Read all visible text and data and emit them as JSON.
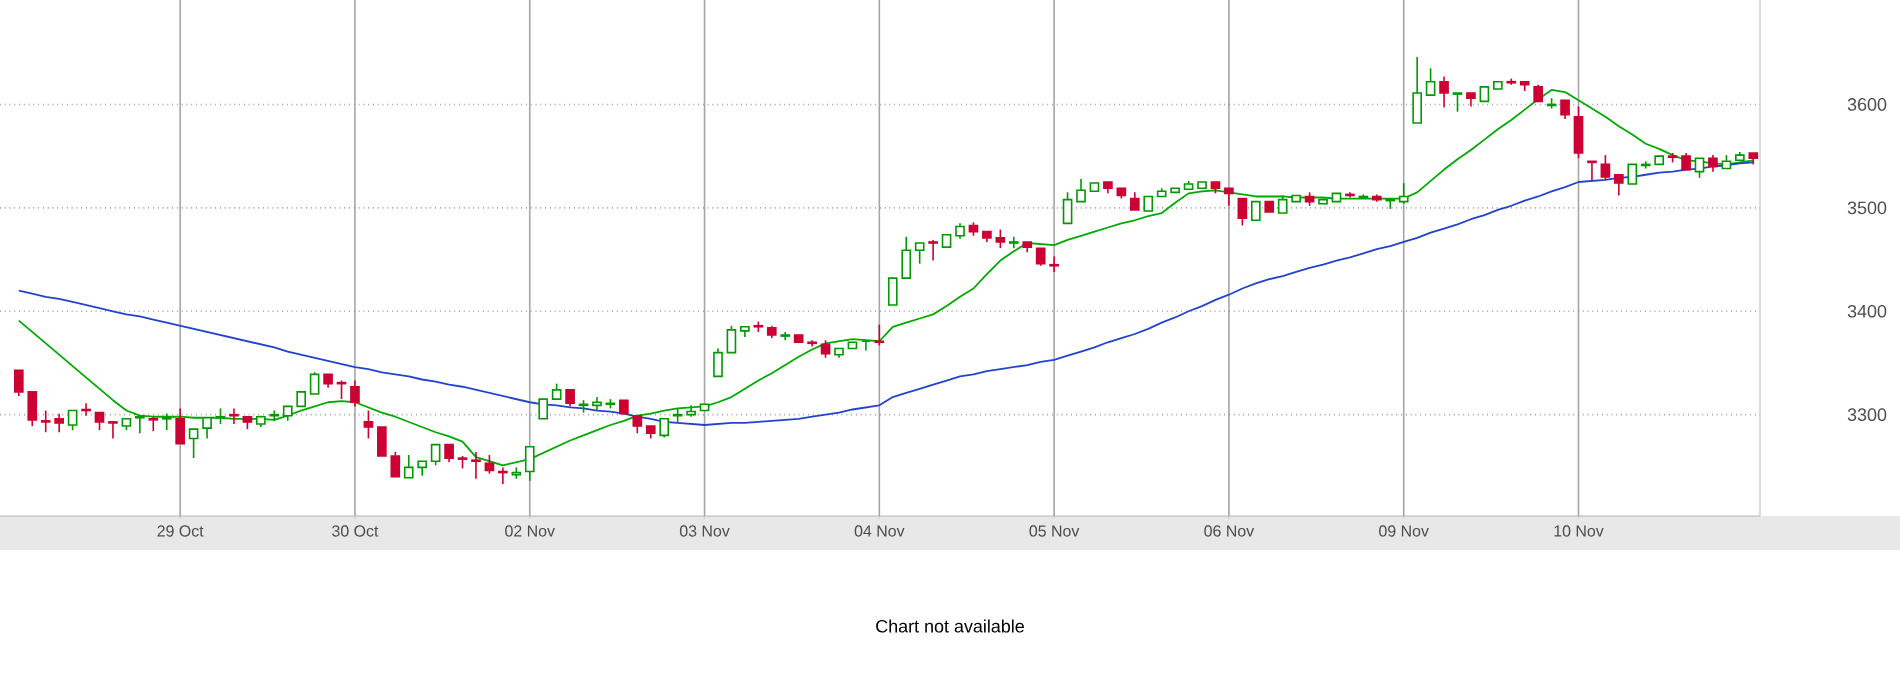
{
  "chart_data": {
    "type": "candlestick",
    "categories": [
      null,
      null,
      null,
      null,
      null,
      null,
      null,
      null,
      null,
      null,
      null,
      null,
      "29 Oct",
      null,
      null,
      null,
      null,
      null,
      null,
      null,
      null,
      null,
      null,
      null,
      null,
      "30 Oct",
      null,
      null,
      null,
      null,
      null,
      null,
      null,
      null,
      null,
      null,
      null,
      null,
      "02 Nov",
      null,
      null,
      null,
      null,
      null,
      null,
      null,
      null,
      null,
      null,
      null,
      null,
      "03 Nov",
      null,
      null,
      null,
      null,
      null,
      null,
      null,
      null,
      null,
      null,
      null,
      null,
      "04 Nov",
      null,
      null,
      null,
      null,
      null,
      null,
      null,
      null,
      null,
      null,
      null,
      null,
      "05 Nov",
      null,
      null,
      null,
      null,
      null,
      null,
      null,
      null,
      null,
      null,
      null,
      null,
      "06 Nov",
      null,
      null,
      null,
      null,
      null,
      null,
      null,
      null,
      null,
      null,
      null,
      null,
      "09 Nov",
      null,
      null,
      null,
      null,
      null,
      null,
      null,
      null,
      null,
      null,
      null,
      null,
      "10 Nov",
      null,
      null,
      null,
      null,
      null,
      null,
      null,
      null,
      null,
      null,
      null,
      null,
      null
    ],
    "ohlc": [
      [
        3343,
        3343,
        3318,
        3322
      ],
      [
        3322,
        3322,
        3289,
        3295
      ],
      [
        3294,
        3304,
        3283,
        3293
      ],
      [
        3296,
        3301,
        3283,
        3292
      ],
      [
        3290,
        3304,
        3285,
        3304
      ],
      [
        3305,
        3311,
        3299,
        3304
      ],
      [
        3302,
        3302,
        3285,
        3293
      ],
      [
        3293,
        3293,
        3277,
        3292
      ],
      [
        3289,
        3296,
        3285,
        3296
      ],
      [
        3297,
        3299,
        3282,
        3298
      ],
      [
        3296,
        3298,
        3284,
        3295
      ],
      [
        3296,
        3301,
        3285,
        3297
      ],
      [
        3296,
        3306,
        3272,
        3272
      ],
      [
        3277,
        3286,
        3258,
        3286
      ],
      [
        3287,
        3297,
        3277,
        3297
      ],
      [
        3297,
        3306,
        3291,
        3298
      ],
      [
        3300,
        3306,
        3291,
        3299
      ],
      [
        3298,
        3298,
        3286,
        3293
      ],
      [
        3291,
        3299,
        3288,
        3298
      ],
      [
        3299,
        3304,
        3294,
        3300
      ],
      [
        3299,
        3308,
        3294,
        3308
      ],
      [
        3308,
        3322,
        3308,
        3322
      ],
      [
        3320,
        3341,
        3320,
        3339
      ],
      [
        3339,
        3339,
        3326,
        3330
      ],
      [
        3331,
        3333,
        3315,
        3330
      ],
      [
        3327,
        3333,
        3308,
        3312
      ],
      [
        3293,
        3304,
        3277,
        3288
      ],
      [
        3288,
        3288,
        3260,
        3260
      ],
      [
        3260,
        3264,
        3240,
        3240
      ],
      [
        3239,
        3261,
        3239,
        3249
      ],
      [
        3249,
        3255,
        3241,
        3255
      ],
      [
        3255,
        3271,
        3251,
        3271
      ],
      [
        3271,
        3271,
        3254,
        3258
      ],
      [
        3258,
        3260,
        3248,
        3257
      ],
      [
        3256,
        3264,
        3238,
        3255
      ],
      [
        3253,
        3261,
        3243,
        3246
      ],
      [
        3245,
        3249,
        3233,
        3244
      ],
      [
        3242,
        3249,
        3238,
        3244
      ],
      [
        3245,
        3269,
        3236,
        3269
      ],
      [
        3296,
        3315,
        3296,
        3315
      ],
      [
        3315,
        3330,
        3315,
        3324
      ],
      [
        3324,
        3324,
        3308,
        3311
      ],
      [
        3309,
        3314,
        3302,
        3310
      ],
      [
        3309,
        3317,
        3304,
        3312
      ],
      [
        3310,
        3315,
        3306,
        3311
      ],
      [
        3314,
        3314,
        3301,
        3301
      ],
      [
        3299,
        3299,
        3282,
        3289
      ],
      [
        3289,
        3289,
        3277,
        3282
      ],
      [
        3280,
        3296,
        3278,
        3296
      ],
      [
        3299,
        3306,
        3293,
        3300
      ],
      [
        3300,
        3309,
        3298,
        3303
      ],
      [
        3304,
        3310,
        3304,
        3310
      ],
      [
        3337,
        3364,
        3337,
        3360
      ],
      [
        3360,
        3386,
        3360,
        3382
      ],
      [
        3381,
        3385,
        3375,
        3385
      ],
      [
        3386,
        3390,
        3380,
        3385
      ],
      [
        3384,
        3386,
        3374,
        3377
      ],
      [
        3376,
        3380,
        3372,
        3377
      ],
      [
        3377,
        3377,
        3370,
        3370
      ],
      [
        3370,
        3372,
        3366,
        3369
      ],
      [
        3368,
        3372,
        3355,
        3359
      ],
      [
        3358,
        3364,
        3355,
        3364
      ],
      [
        3364,
        3370,
        3364,
        3370
      ],
      [
        3371,
        3371,
        3362,
        3371
      ],
      [
        3371,
        3387,
        3367,
        3370
      ],
      [
        3406,
        3432,
        3406,
        3432
      ],
      [
        3432,
        3472,
        3432,
        3459
      ],
      [
        3459,
        3466,
        3446,
        3466
      ],
      [
        3467,
        3469,
        3449,
        3466
      ],
      [
        3462,
        3474,
        3462,
        3474
      ],
      [
        3473,
        3485,
        3470,
        3482
      ],
      [
        3483,
        3486,
        3473,
        3477
      ],
      [
        3477,
        3477,
        3467,
        3471
      ],
      [
        3471,
        3479,
        3461,
        3467
      ],
      [
        3466,
        3472,
        3461,
        3467
      ],
      [
        3467,
        3467,
        3457,
        3462
      ],
      [
        3461,
        3461,
        3444,
        3446
      ],
      [
        3445,
        3453,
        3438,
        3444
      ],
      [
        3485,
        3515,
        3485,
        3508
      ],
      [
        3506,
        3528,
        3506,
        3517
      ],
      [
        3516,
        3524,
        3516,
        3524
      ],
      [
        3525,
        3525,
        3514,
        3519
      ],
      [
        3519,
        3519,
        3509,
        3512
      ],
      [
        3509,
        3515,
        3498,
        3498
      ],
      [
        3497,
        3511,
        3497,
        3511
      ],
      [
        3511,
        3519,
        3511,
        3516
      ],
      [
        3515,
        3519,
        3515,
        3519
      ],
      [
        3518,
        3526,
        3518,
        3523
      ],
      [
        3519,
        3525,
        3519,
        3525
      ],
      [
        3525,
        3525,
        3514,
        3519
      ],
      [
        3519,
        3519,
        3502,
        3514
      ],
      [
        3509,
        3509,
        3483,
        3490
      ],
      [
        3488,
        3506,
        3488,
        3506
      ],
      [
        3506,
        3506,
        3496,
        3496
      ],
      [
        3495,
        3512,
        3495,
        3508
      ],
      [
        3506,
        3512,
        3506,
        3512
      ],
      [
        3511,
        3515,
        3502,
        3506
      ],
      [
        3504,
        3509,
        3504,
        3508
      ],
      [
        3506,
        3514,
        3506,
        3514
      ],
      [
        3513,
        3515,
        3510,
        3512
      ],
      [
        3510,
        3513,
        3509,
        3511
      ],
      [
        3511,
        3513,
        3506,
        3508
      ],
      [
        3507,
        3508,
        3499,
        3508
      ],
      [
        3506,
        3524,
        3504,
        3511
      ],
      [
        3582,
        3646,
        3582,
        3611
      ],
      [
        3609,
        3635,
        3609,
        3622
      ],
      [
        3622,
        3627,
        3597,
        3611
      ],
      [
        3610,
        3611,
        3593,
        3611
      ],
      [
        3611,
        3611,
        3598,
        3606
      ],
      [
        3603,
        3617,
        3603,
        3617
      ],
      [
        3615,
        3622,
        3615,
        3622
      ],
      [
        3622,
        3625,
        3619,
        3621
      ],
      [
        3622,
        3622,
        3613,
        3619
      ],
      [
        3617,
        3619,
        3603,
        3603
      ],
      [
        3599,
        3606,
        3596,
        3600
      ],
      [
        3604,
        3604,
        3586,
        3590
      ],
      [
        3588,
        3598,
        3548,
        3553
      ],
      [
        3545,
        3545,
        3527,
        3544
      ],
      [
        3542,
        3551,
        3527,
        3530
      ],
      [
        3532,
        3532,
        3512,
        3524
      ],
      [
        3523,
        3542,
        3523,
        3542
      ],
      [
        3541,
        3545,
        3538,
        3542
      ],
      [
        3542,
        3550,
        3542,
        3550
      ],
      [
        3550,
        3553,
        3544,
        3549
      ],
      [
        3550,
        3553,
        3537,
        3537
      ],
      [
        3535,
        3548,
        3529,
        3548
      ],
      [
        3548,
        3551,
        3535,
        3540
      ],
      [
        3538,
        3551,
        3538,
        3545
      ],
      [
        3546,
        3554,
        3546,
        3551
      ],
      [
        3553,
        3553,
        3542,
        3548
      ]
    ],
    "colors": [
      "#cc0033",
      "#cc0033",
      "#cc0033",
      "#cc0033",
      "#009900",
      "#cc0033",
      "#cc0033",
      "#cc0033",
      "#009900",
      "#009900",
      "#cc0033",
      "#009900",
      "#cc0033",
      "#009900",
      "#009900",
      "#009900",
      "#cc0033",
      "#cc0033",
      "#009900",
      "#009900",
      "#009900",
      "#009900",
      "#009900",
      "#cc0033",
      "#cc0033",
      "#cc0033",
      "#cc0033",
      "#cc0033",
      "#cc0033",
      "#009900",
      "#009900",
      "#009900",
      "#cc0033",
      "#cc0033",
      "#cc0033",
      "#cc0033",
      "#cc0033",
      "#009900",
      "#009900",
      "#009900",
      "#009900",
      "#cc0033",
      "#009900",
      "#009900",
      "#009900",
      "#cc0033",
      "#cc0033",
      "#cc0033",
      "#009900",
      "#009900",
      "#009900",
      "#009900",
      "#009900",
      "#009900",
      "#009900",
      "#cc0033",
      "#cc0033",
      "#009900",
      "#cc0033",
      "#cc0033",
      "#cc0033",
      "#009900",
      "#009900",
      "#009900",
      "#cc0033",
      "#009900",
      "#009900",
      "#009900",
      "#cc0033",
      "#009900",
      "#009900",
      "#cc0033",
      "#cc0033",
      "#cc0033",
      "#009900",
      "#cc0033",
      "#cc0033",
      "#cc0033",
      "#009900",
      "#009900",
      "#009900",
      "#cc0033",
      "#cc0033",
      "#cc0033",
      "#009900",
      "#009900",
      "#009900",
      "#009900",
      "#009900",
      "#cc0033",
      "#cc0033",
      "#cc0033",
      "#009900",
      "#cc0033",
      "#009900",
      "#009900",
      "#cc0033",
      "#009900",
      "#009900",
      "#cc0033",
      "#009900",
      "#cc0033",
      "#009900",
      "#009900",
      "#009900",
      "#009900",
      "#cc0033",
      "#009900",
      "#cc0033",
      "#009900",
      "#009900",
      "#cc0033",
      "#cc0033",
      "#cc0033",
      "#009900",
      "#cc0033",
      "#cc0033",
      "#cc0033",
      "#cc0033",
      "#cc0033",
      "#009900",
      "#009900",
      "#009900",
      "#cc0033",
      "#cc0033",
      "#009900",
      "#cc0033",
      "#009900",
      "#009900",
      "#cc0033"
    ],
    "series": [
      {
        "type": "line",
        "color": "#00aa00",
        "values": [
          3391,
          3380,
          3369,
          3358,
          3347,
          3336,
          3325,
          3314,
          3304,
          3299,
          3298,
          3298,
          3298,
          3297,
          3297,
          3297,
          3296,
          3296,
          3296,
          3295,
          3299,
          3304,
          3308,
          3312,
          3313,
          3312,
          3307,
          3302,
          3298,
          3293,
          3288,
          3283,
          3279,
          3274,
          3259,
          3255,
          3251,
          3254,
          3257,
          3263,
          3269,
          3275,
          3280,
          3285,
          3290,
          3294,
          3299,
          3301,
          3304,
          3306,
          3307,
          3308,
          3312,
          3317,
          3325,
          3333,
          3340,
          3348,
          3356,
          3363,
          3369,
          3371,
          3373,
          3372,
          3371,
          3385,
          3389,
          3393,
          3397,
          3405,
          3414,
          3422,
          3436,
          3449,
          3458,
          3466,
          3465,
          3464,
          3469,
          3473,
          3477,
          3481,
          3485,
          3488,
          3492,
          3495,
          3505,
          3514,
          3516,
          3517,
          3515,
          3513,
          3511,
          3511,
          3511,
          3510,
          3510,
          3510,
          3509,
          3509,
          3509,
          3509,
          3509,
          3509,
          3515,
          3526,
          3537,
          3547,
          3556,
          3566,
          3576,
          3585,
          3595,
          3605,
          3614,
          3612,
          3604,
          3596,
          3588,
          3579,
          3571,
          3562,
          3557,
          3551,
          3546,
          3545,
          3543,
          3542,
          3544,
          3546
        ]
      },
      {
        "type": "line",
        "color": "#2244cc",
        "values": [
          3420,
          3417,
          3414,
          3412,
          3409,
          3406,
          3403,
          3400,
          3397,
          3395,
          3392,
          3389,
          3386,
          3383,
          3380,
          3377,
          3374,
          3371,
          3368,
          3365,
          3361,
          3358,
          3355,
          3352,
          3349,
          3346,
          3344,
          3341,
          3339,
          3337,
          3334,
          3332,
          3329,
          3327,
          3324,
          3321,
          3318,
          3315,
          3312,
          3310,
          3309,
          3307,
          3306,
          3304,
          3303,
          3301,
          3298,
          3296,
          3293,
          3292,
          3291,
          3290,
          3291,
          3292,
          3292,
          3293,
          3294,
          3295,
          3296,
          3298,
          3300,
          3302,
          3305,
          3307,
          3309,
          3317,
          3321,
          3325,
          3329,
          3333,
          3337,
          3339,
          3342,
          3344,
          3346,
          3348,
          3351,
          3353,
          3357,
          3361,
          3365,
          3370,
          3374,
          3378,
          3383,
          3389,
          3394,
          3400,
          3405,
          3411,
          3416,
          3422,
          3427,
          3431,
          3434,
          3438,
          3442,
          3445,
          3449,
          3452,
          3456,
          3460,
          3463,
          3467,
          3471,
          3476,
          3480,
          3484,
          3489,
          3493,
          3498,
          3502,
          3507,
          3511,
          3516,
          3520,
          3525,
          3526,
          3527,
          3529,
          3530,
          3532,
          3534,
          3535,
          3537,
          3538,
          3540,
          3541,
          3543,
          3544
        ]
      }
    ],
    "ylim": [
      3202,
      3701
    ],
    "yticks": [
      3300,
      3400,
      3500,
      3600
    ],
    "grid": true,
    "annotations": [
      "Chart not available"
    ]
  }
}
